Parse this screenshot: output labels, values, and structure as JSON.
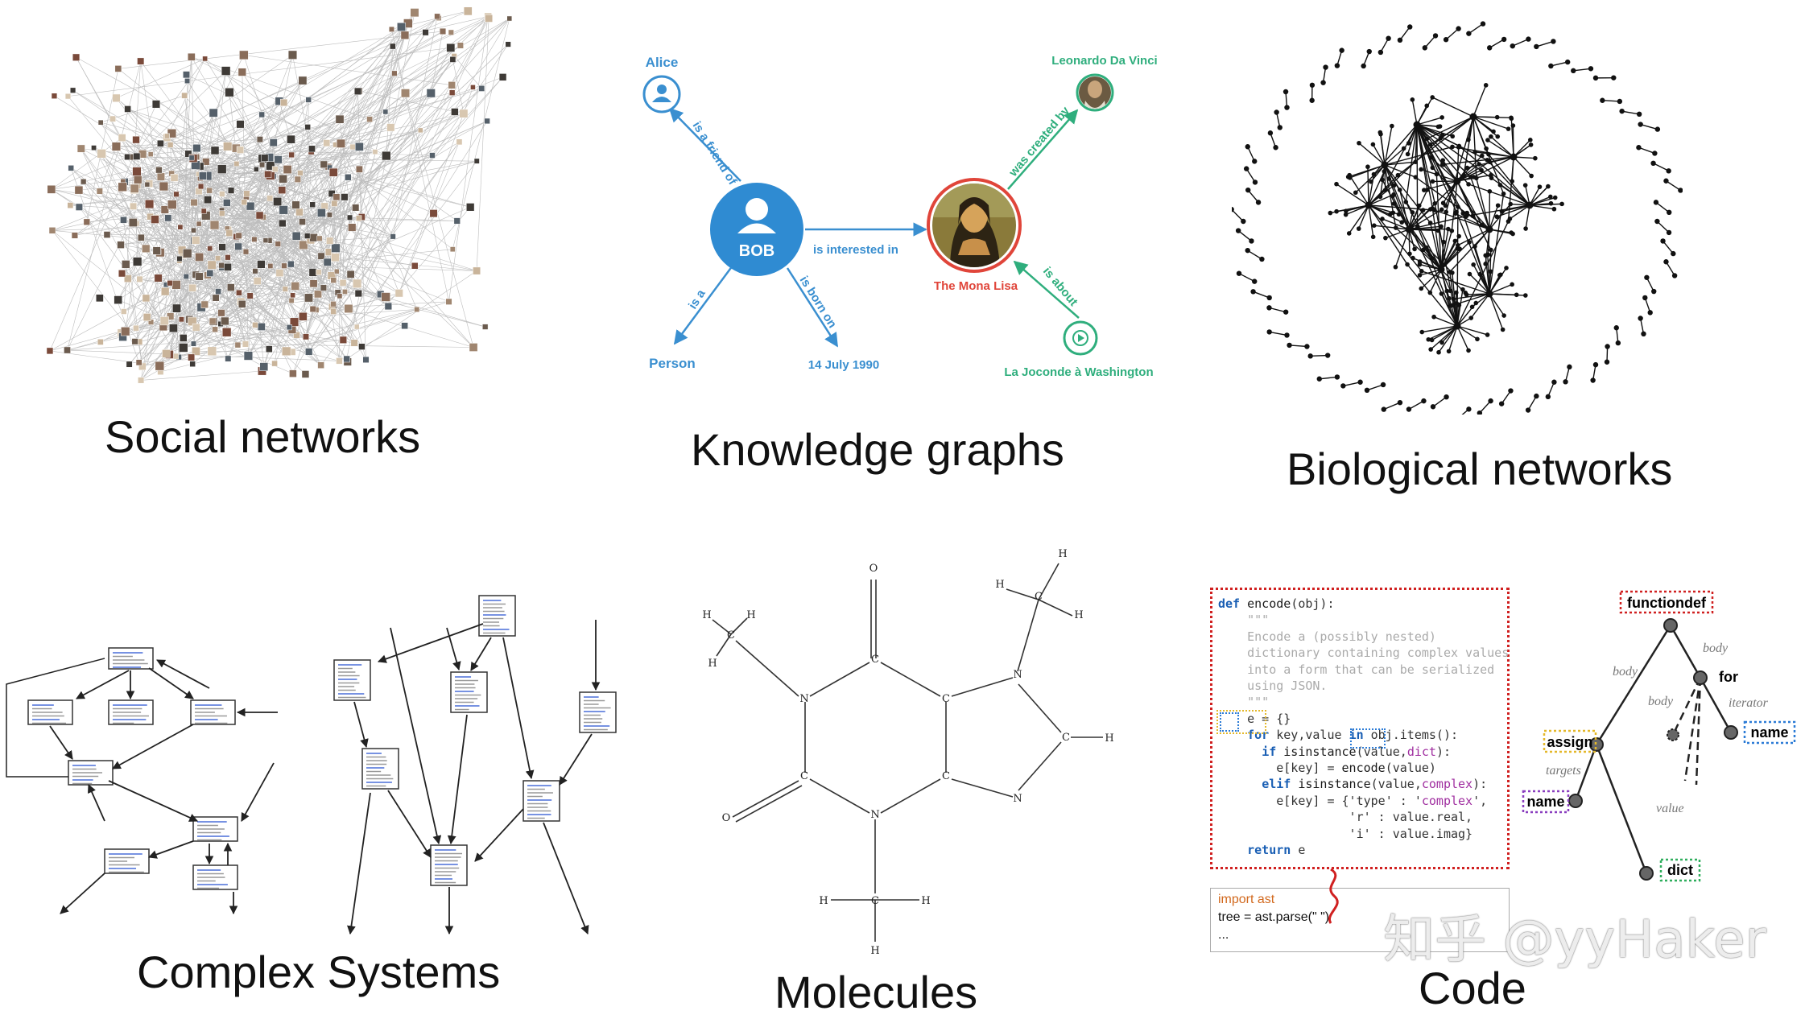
{
  "captions": {
    "social": "Social networks",
    "knowledge": "Knowledge graphs",
    "biological": "Biological networks",
    "complex": "Complex Systems",
    "molecules": "Molecules",
    "code": "Code"
  },
  "knowledge_graph": {
    "nodes": {
      "alice": "Alice",
      "bob": "BOB",
      "person": "Person",
      "date": "14 July 1990",
      "mona": "The Mona Lisa",
      "leonardo": "Leonardo Da Vinci",
      "joconde": "La Joconde à Washington"
    },
    "edges": {
      "friend": "is a friend of",
      "is_a": "is a",
      "born": "is born on",
      "interested": "is interested in",
      "created": "was created by",
      "about": "is about"
    },
    "colors": {
      "blue": "#3a8fd0",
      "green": "#2fae7d",
      "red": "#e0453a"
    }
  },
  "molecule": {
    "atoms": {
      "H": "H",
      "C": "C",
      "N": "N",
      "O": "O"
    }
  },
  "code": {
    "lines": [
      "def encode(obj):",
      "    \"\"\"",
      "    Encode a (possibly nested)",
      "    dictionary containing complex values",
      "    into a form that can be serialized",
      "    using JSON.",
      "    \"\"\"",
      "    e = {}",
      "    for key,value in obj.items():",
      "      if isinstance(value,dict):",
      "        e[key] = encode(value)",
      "      elif isinstance(value,complex):",
      "        e[key] = {'type' : 'complex',",
      "                  'r' : value.real,",
      "                  'i' : value.imag}",
      "    return e"
    ],
    "snippet": [
      "import ast",
      "tree = ast.parse(\"  \")",
      "..."
    ],
    "ast_nodes": {
      "functiondef": "functiondef",
      "for": "for",
      "assign": "assign",
      "name1": "name",
      "name2": "name",
      "dict": "dict"
    },
    "ast_edges": {
      "body1": "body",
      "body2": "body",
      "body3": "body",
      "iterator": "iterator",
      "targets": "targets",
      "value": "value"
    }
  },
  "watermark": "知乎 @yyHaker"
}
